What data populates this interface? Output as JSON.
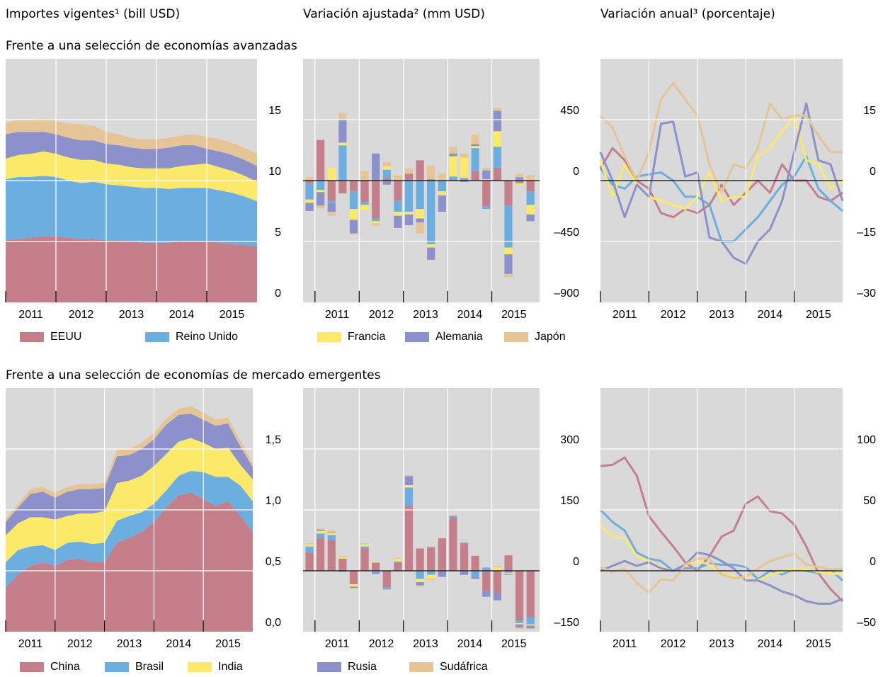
{
  "column_titles": [
    "Importes vigentes¹ (bill USD)",
    "Variación ajustada² (mm USD)",
    "Variación anual³ (porcentaje)"
  ],
  "row_titles": [
    "Frente a una selección de economías avanzadas",
    "Frente a una selección de economías de mercado emergentes"
  ],
  "chart_data": [
    {
      "type": "area",
      "xlim": [
        2011,
        2016
      ],
      "xticks": [
        2011,
        2012,
        2013,
        2014,
        2015
      ],
      "ylim": [
        0,
        20
      ],
      "yticks": [
        0,
        5,
        10,
        15
      ],
      "grid": true,
      "x": [
        2011,
        2011.25,
        2011.5,
        2011.75,
        2012,
        2012.25,
        2012.5,
        2012.75,
        2013,
        2013.25,
        2013.5,
        2013.75,
        2014,
        2014.25,
        2014.5,
        2014.75,
        2015,
        2015.25,
        2015.5,
        2015.75,
        2016
      ],
      "series": [
        {
          "name": "EEUU",
          "color": "#c47f8b",
          "values": [
            5.1,
            5.2,
            5.3,
            5.4,
            5.4,
            5.3,
            5.2,
            5.2,
            5.1,
            5.1,
            5.0,
            4.9,
            4.9,
            4.9,
            5.0,
            5.0,
            5.0,
            4.9,
            4.8,
            4.7,
            4.6
          ]
        },
        {
          "name": "Reino Unido",
          "color": "#6caee0",
          "values": [
            5.0,
            5.1,
            5.0,
            5.0,
            4.9,
            4.7,
            4.6,
            4.7,
            4.6,
            4.5,
            4.5,
            4.5,
            4.5,
            4.4,
            4.4,
            4.4,
            4.4,
            4.3,
            4.2,
            4.0,
            3.7
          ]
        },
        {
          "name": "Francia",
          "color": "#fbe96a",
          "values": [
            1.7,
            1.8,
            1.9,
            2.0,
            1.9,
            1.9,
            1.9,
            1.8,
            1.7,
            1.7,
            1.6,
            1.6,
            1.6,
            1.7,
            1.8,
            1.9,
            2.0,
            1.9,
            1.8,
            1.7,
            1.6
          ]
        },
        {
          "name": "Alemania",
          "color": "#8c91cc",
          "values": [
            2.0,
            1.9,
            1.8,
            1.6,
            1.6,
            1.6,
            1.6,
            1.6,
            1.6,
            1.6,
            1.6,
            1.6,
            1.6,
            1.7,
            1.7,
            1.6,
            1.2,
            1.3,
            1.3,
            1.3,
            1.3
          ]
        },
        {
          "name": "Japón",
          "color": "#e5c595",
          "values": [
            0.9,
            1.0,
            1.0,
            1.1,
            1.1,
            1.2,
            1.3,
            1.2,
            1.0,
            0.9,
            0.8,
            0.8,
            0.8,
            0.8,
            0.8,
            0.9,
            1.0,
            1.0,
            1.0,
            1.0,
            1.0
          ]
        }
      ]
    },
    {
      "type": "bar",
      "xlim": [
        2010.73,
        2016.08
      ],
      "xticks": [
        2011,
        2012,
        2013,
        2014,
        2015
      ],
      "ylim": [
        -900,
        900
      ],
      "yticks": [
        {
          "value": -900,
          "label": "–900"
        },
        {
          "value": -450,
          "label": "–450"
        },
        0,
        450
      ],
      "grid": true,
      "x": [
        2010.875,
        2011.125,
        2011.375,
        2011.625,
        2011.875,
        2012.125,
        2012.375,
        2012.625,
        2012.875,
        2013.125,
        2013.375,
        2013.625,
        2013.875,
        2014.125,
        2014.375,
        2014.625,
        2014.875,
        2015.125,
        2015.375,
        2015.625,
        2015.875
      ],
      "series": [
        {
          "name": "EEUU",
          "color": "#c47f8b",
          "values": [
            -20,
            300,
            -150,
            -95,
            -80,
            -160,
            -280,
            20,
            -150,
            50,
            150,
            10,
            0,
            10,
            10,
            70,
            -190,
            95,
            -185,
            -20,
            -80
          ]
        },
        {
          "name": "Reino Unido",
          "color": "#6caee0",
          "values": [
            -120,
            -70,
            -20,
            260,
            -130,
            -20,
            -20,
            60,
            -80,
            -230,
            -210,
            -470,
            -80,
            20,
            10,
            170,
            -20,
            155,
            -310,
            10,
            -100
          ]
        },
        {
          "name": "Francia",
          "color": "#fbe96a",
          "values": [
            -25,
            -15,
            95,
            20,
            -80,
            -40,
            -15,
            25,
            -30,
            -20,
            -70,
            -25,
            -30,
            150,
            150,
            15,
            10,
            115,
            -50,
            -15,
            -70
          ]
        },
        {
          "name": "Alemania",
          "color": "#8c91cc",
          "values": [
            -60,
            -100,
            -60,
            170,
            -100,
            0,
            200,
            -30,
            -90,
            -80,
            -30,
            -90,
            -120,
            20,
            -10,
            15,
            65,
            150,
            -145,
            15,
            -50
          ]
        },
        {
          "name": "Japón",
          "color": "#e5c595",
          "values": [
            25,
            -20,
            -30,
            50,
            -10,
            70,
            -20,
            30,
            40,
            40,
            -80,
            100,
            50,
            50,
            30,
            70,
            20,
            20,
            -25,
            25,
            40
          ]
        }
      ]
    },
    {
      "type": "line",
      "xlim": [
        2011,
        2016
      ],
      "xticks": [
        2011,
        2012,
        2013,
        2014,
        2015
      ],
      "ylim": [
        -30,
        30
      ],
      "yticks": [
        {
          "value": -30,
          "label": "–30"
        },
        {
          "value": -15,
          "label": "–15"
        },
        0,
        15
      ],
      "grid": true,
      "x": [
        2011,
        2011.25,
        2011.5,
        2011.75,
        2012,
        2012.25,
        2012.5,
        2012.75,
        2013,
        2013.25,
        2013.5,
        2013.75,
        2014,
        2014.25,
        2014.5,
        2014.75,
        2015,
        2015.25,
        2015.5,
        2015.75,
        2016
      ],
      "series": [
        {
          "name": "EEUU",
          "color": "#c47f8b",
          "values": [
            3,
            8,
            5,
            0,
            -2,
            -8,
            -9,
            -7,
            -8,
            -6,
            -1,
            -6,
            -3,
            0,
            -3,
            4,
            0,
            0,
            -4,
            -5,
            -3
          ]
        },
        {
          "name": "Reino Unido",
          "color": "#6caee0",
          "values": [
            3,
            -1,
            -2,
            1,
            1.5,
            2,
            0,
            -4,
            -4,
            -6,
            -15,
            -15,
            -12,
            -9,
            -5,
            -1,
            1,
            6,
            -2,
            -5,
            -7.5
          ]
        },
        {
          "name": "Francia",
          "color": "#fbe96a",
          "values": [
            5,
            -4,
            4,
            -1,
            -4,
            -5,
            -6,
            -7,
            -4,
            2,
            -5,
            -4,
            -4,
            6,
            8,
            12,
            16,
            5,
            4,
            -2,
            0
          ]
        },
        {
          "name": "Alemania",
          "color": "#8c91cc",
          "values": [
            7,
            0,
            -9,
            -1,
            -4,
            14,
            14.5,
            1,
            2,
            -14,
            -15,
            -19,
            -20.5,
            -15,
            -12,
            -5,
            7,
            19,
            5,
            4,
            -5
          ]
        },
        {
          "name": "Japón",
          "color": "#e5c595",
          "values": [
            16,
            13,
            6,
            0,
            7,
            20,
            24,
            20,
            16,
            4,
            -3,
            4,
            3,
            8,
            19,
            15,
            16,
            16,
            11,
            7,
            7
          ]
        }
      ]
    },
    {
      "type": "area",
      "xlim": [
        2011,
        2016
      ],
      "xticks": [
        2011,
        2012,
        2013,
        2014,
        2015
      ],
      "ylim": [
        0,
        2
      ],
      "yticks": [
        {
          "value": 0,
          "label": "0,0"
        },
        {
          "value": 0.5,
          "label": "0,5"
        },
        {
          "value": 1,
          "label": "1,0"
        },
        {
          "value": 1.5,
          "label": "1,5"
        }
      ],
      "grid": true,
      "x": [
        2011,
        2011.25,
        2011.5,
        2011.75,
        2012,
        2012.25,
        2012.5,
        2012.75,
        2013,
        2013.25,
        2013.5,
        2013.75,
        2014,
        2014.25,
        2014.5,
        2014.75,
        2015,
        2015.25,
        2015.5,
        2015.75,
        2016
      ],
      "series": [
        {
          "name": "China",
          "color": "#c47f8b",
          "values": [
            0.36,
            0.47,
            0.54,
            0.57,
            0.54,
            0.59,
            0.6,
            0.57,
            0.57,
            0.73,
            0.77,
            0.82,
            0.9,
            1.02,
            1.12,
            1.14,
            1.09,
            1.03,
            1.07,
            0.95,
            0.82
          ]
        },
        {
          "name": "Brasil",
          "color": "#6caee0",
          "values": [
            0.21,
            0.2,
            0.16,
            0.14,
            0.13,
            0.14,
            0.14,
            0.15,
            0.16,
            0.18,
            0.18,
            0.16,
            0.15,
            0.14,
            0.16,
            0.18,
            0.22,
            0.24,
            0.2,
            0.25,
            0.25
          ]
        },
        {
          "name": "India",
          "color": "#fbe96a",
          "values": [
            0.22,
            0.22,
            0.24,
            0.23,
            0.25,
            0.22,
            0.23,
            0.25,
            0.26,
            0.31,
            0.29,
            0.3,
            0.31,
            0.3,
            0.28,
            0.27,
            0.24,
            0.23,
            0.24,
            0.17,
            0.18
          ]
        },
        {
          "name": "Rusia",
          "color": "#8c91cc",
          "values": [
            0.11,
            0.13,
            0.19,
            0.21,
            0.18,
            0.2,
            0.2,
            0.2,
            0.19,
            0.22,
            0.21,
            0.22,
            0.22,
            0.24,
            0.22,
            0.2,
            0.19,
            0.19,
            0.2,
            0.15,
            0.1
          ]
        },
        {
          "name": "Sudáfrica",
          "color": "#e5c595",
          "values": [
            0.03,
            0.03,
            0.04,
            0.04,
            0.04,
            0.04,
            0.04,
            0.04,
            0.04,
            0.05,
            0.05,
            0.05,
            0.05,
            0.05,
            0.05,
            0.06,
            0.06,
            0.05,
            0.05,
            0.05,
            0.03
          ]
        }
      ]
    },
    {
      "type": "bar",
      "xlim": [
        2010.73,
        2016.08
      ],
      "xticks": [
        2011,
        2012,
        2013,
        2014,
        2015
      ],
      "ylim": [
        -150,
        450
      ],
      "yticks": [
        {
          "value": -150,
          "label": "–150"
        },
        0,
        150,
        300
      ],
      "grid": true,
      "x": [
        2010.875,
        2011.125,
        2011.375,
        2011.625,
        2011.875,
        2012.125,
        2012.375,
        2012.625,
        2012.875,
        2013.125,
        2013.375,
        2013.625,
        2013.875,
        2014.125,
        2014.375,
        2014.625,
        2014.875,
        2015.125,
        2015.375,
        2015.625,
        2015.875
      ],
      "series": [
        {
          "name": "China",
          "color": "#c47f8b",
          "values": [
            45,
            80,
            76,
            30,
            -33,
            55,
            20,
            -40,
            20,
            160,
            55,
            58,
            80,
            130,
            66,
            37,
            -50,
            -55,
            38,
            -122,
            -115
          ]
        },
        {
          "name": "Brasil",
          "color": "#6caee0",
          "values": [
            15,
            12,
            12,
            -3,
            0,
            5,
            -5,
            -4,
            3,
            45,
            -20,
            -10,
            0,
            3,
            4,
            -15,
            8,
            0,
            -5,
            -7,
            -17
          ]
        },
        {
          "name": "India",
          "color": "#fbe96a",
          "values": [
            5,
            6,
            6,
            3,
            -6,
            5,
            2,
            0,
            6,
            6,
            -8,
            -10,
            0,
            0,
            3,
            0,
            0,
            8,
            -3,
            -3,
            -3
          ]
        },
        {
          "name": "Rusia",
          "color": "#8c91cc",
          "values": [
            0,
            3,
            2,
            0,
            -3,
            0,
            -3,
            -2,
            0,
            22,
            -8,
            0,
            -15,
            2,
            -10,
            -5,
            -14,
            -18,
            -2,
            -8,
            -7
          ]
        },
        {
          "name": "Sudáfrica",
          "color": "#e5c595",
          "values": [
            3,
            4,
            3,
            3,
            -3,
            3,
            0,
            0,
            3,
            3,
            -3,
            -3,
            0,
            2,
            2,
            0,
            0,
            3,
            0,
            -4,
            -2
          ]
        }
      ]
    },
    {
      "type": "line",
      "xlim": [
        2011,
        2016
      ],
      "xticks": [
        2011,
        2012,
        2013,
        2014,
        2015
      ],
      "ylim": [
        -50,
        150
      ],
      "yticks": [
        {
          "value": -50,
          "label": "–50"
        },
        0,
        50,
        100
      ],
      "grid": true,
      "x": [
        2011,
        2011.25,
        2011.5,
        2011.75,
        2012,
        2012.25,
        2012.5,
        2012.75,
        2013,
        2013.25,
        2013.5,
        2013.75,
        2014,
        2014.25,
        2014.5,
        2014.75,
        2015,
        2015.25,
        2015.5,
        2015.75,
        2016
      ],
      "series": [
        {
          "name": "China",
          "color": "#c47f8b",
          "values": [
            86,
            87,
            93,
            78,
            45,
            32,
            20,
            7,
            0,
            12,
            28,
            33,
            55,
            61,
            49,
            47,
            38,
            20,
            -2,
            -15,
            -25
          ]
        },
        {
          "name": "Brasil",
          "color": "#6caee0",
          "values": [
            50,
            40,
            33,
            15,
            10,
            8,
            0,
            2,
            2,
            6,
            5,
            5,
            3,
            -7,
            0,
            -3,
            2,
            0,
            -2,
            1,
            -8
          ]
        },
        {
          "name": "India",
          "color": "#fbe96a",
          "values": [
            37,
            28,
            27,
            12,
            8,
            3,
            0,
            5,
            8,
            5,
            -2,
            -5,
            -6,
            -8,
            -3,
            -1,
            2,
            1,
            -1,
            -2,
            -3
          ]
        },
        {
          "name": "Rusia",
          "color": "#8c91cc",
          "values": [
            0,
            4,
            8,
            4,
            7,
            2,
            0,
            5,
            15,
            13,
            8,
            2,
            -8,
            -8,
            -12,
            -17,
            -20,
            -25,
            -27,
            -27,
            -23
          ]
        },
        {
          "name": "Sudáfrica",
          "color": "#e5c595",
          "values": [
            3,
            -1,
            2,
            -10,
            -18,
            -7,
            -8,
            5,
            10,
            10,
            -3,
            -6,
            -5,
            2,
            8,
            11,
            14,
            5,
            3,
            1,
            2
          ]
        }
      ]
    }
  ]
}
